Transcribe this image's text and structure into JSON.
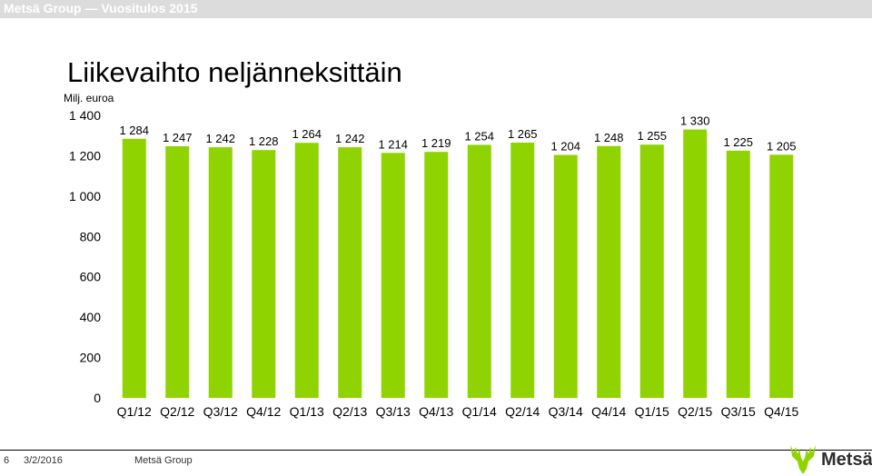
{
  "header": {
    "title": "Metsä Group — Vuositulos 2015"
  },
  "slide": {
    "title": "Liikevaihto neljänneksittäin",
    "unit": "Milj. euroa"
  },
  "footer": {
    "page": "6",
    "date": "3/2/2016",
    "company": "Metsä Group"
  },
  "logo": {
    "text": "Metsä",
    "icon": "moose-antlers-icon"
  },
  "colors": {
    "bar": "#8fd400",
    "axis_text": "#000000",
    "header_bar": "#dcdcdc"
  },
  "chart_data": {
    "type": "bar",
    "title": "Liikevaihto neljänneksittäin",
    "ylabel": "Milj. euroa",
    "xlabel": "",
    "categories": [
      "Q1/12",
      "Q2/12",
      "Q3/12",
      "Q4/12",
      "Q1/13",
      "Q2/13",
      "Q3/13",
      "Q4/13",
      "Q1/14",
      "Q2/14",
      "Q3/14",
      "Q4/14",
      "Q1/15",
      "Q2/15",
      "Q3/15",
      "Q4/15"
    ],
    "values": [
      1284,
      1247,
      1242,
      1228,
      1264,
      1242,
      1214,
      1219,
      1254,
      1265,
      1204,
      1248,
      1255,
      1330,
      1225,
      1205
    ],
    "value_labels": [
      "1 284",
      "1 247",
      "1 242",
      "1 228",
      "1 264",
      "1 242",
      "1 214",
      "1 219",
      "1 254",
      "1 265",
      "1 204",
      "1 248",
      "1 255",
      "1 330",
      "1 225",
      "1 205"
    ],
    "ylim": [
      0,
      1400
    ],
    "yticks": [
      0,
      200,
      400,
      600,
      800,
      1000,
      1200,
      1400
    ],
    "ytick_labels": [
      "0",
      "200",
      "400",
      "600",
      "800",
      "1 000",
      "1 200",
      "1 400"
    ],
    "grid": false,
    "legend": "none"
  }
}
